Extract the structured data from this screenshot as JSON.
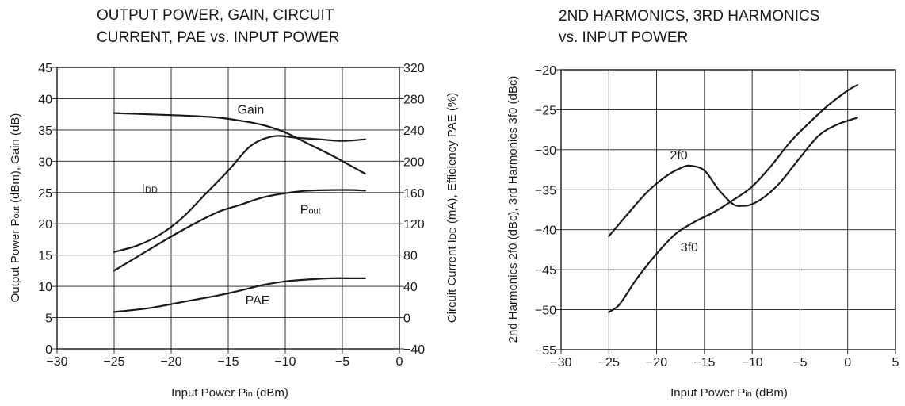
{
  "chart_data": [
    {
      "type": "line",
      "title_lines": [
        "OUTPUT POWER, GAIN, CIRCUIT",
        "CURRENT, PAE vs. INPUT POWER"
      ],
      "xlabel": {
        "main": "Input Power  P",
        "sub": "in",
        "unit": " (dBm)"
      },
      "ylabel_left": {
        "a": "Output Power  P",
        "a_sub": "out",
        "b": " (dBm), Gain (dB)"
      },
      "ylabel_right": {
        "a": "Circuit Current  I",
        "a_sub": "DD",
        "b": " (mA), Efficiency  PAE (%)"
      },
      "xlim": [
        -30,
        0
      ],
      "ylim_left": [
        0,
        45
      ],
      "ylim_right": [
        -40,
        320
      ],
      "x_ticks": [
        -30,
        -25,
        -20,
        -15,
        -10,
        -5,
        0
      ],
      "y_ticks_left": [
        0,
        5,
        10,
        15,
        20,
        25,
        30,
        35,
        40,
        45
      ],
      "y_ticks_right": [
        -40,
        0,
        40,
        80,
        120,
        160,
        200,
        240,
        280,
        320
      ],
      "x_tick_labels": [
        "−30",
        "−25",
        "−20",
        "−15",
        "−10",
        "−5",
        "0"
      ],
      "y_tick_labels_left": [
        "0",
        "5",
        "10",
        "15",
        "20",
        "25",
        "30",
        "35",
        "40",
        "45"
      ],
      "y_tick_labels_right": [
        "−40",
        "0",
        "40",
        "80",
        "120",
        "160",
        "200",
        "240",
        "280",
        "320"
      ],
      "grid": true,
      "series": [
        {
          "name": "Gain",
          "axis": "left",
          "x": [
            -25,
            -22,
            -19,
            -16,
            -14,
            -12,
            -10,
            -8,
            -6,
            -4,
            -3
          ],
          "y": [
            37.7,
            37.5,
            37.3,
            37.0,
            36.5,
            35.8,
            34.6,
            32.8,
            31.0,
            29.0,
            28.0
          ]
        },
        {
          "name": "IDD",
          "label_main": "I",
          "label_sub": "DD",
          "axis": "right",
          "x": [
            -25,
            -23,
            -21,
            -19,
            -17,
            -15,
            -13,
            -11,
            -9,
            -7,
            -5,
            -3
          ],
          "y": [
            84,
            92,
            106,
            128,
            158,
            188,
            220,
            232,
            230,
            228,
            226,
            228
          ]
        },
        {
          "name": "Pout",
          "label_main": "P",
          "label_sub": "out",
          "axis": "left",
          "x": [
            -25,
            -22,
            -19,
            -16,
            -14,
            -12,
            -10,
            -8,
            -6,
            -4,
            -3
          ],
          "y": [
            12.5,
            15.8,
            19.0,
            21.8,
            23.0,
            24.2,
            24.9,
            25.3,
            25.4,
            25.4,
            25.3
          ]
        },
        {
          "name": "PAE",
          "axis": "left",
          "x": [
            -25,
            -22,
            -19,
            -16,
            -14,
            -12,
            -10,
            -8,
            -6,
            -4,
            -3
          ],
          "y": [
            5.9,
            6.5,
            7.5,
            8.5,
            9.3,
            10.2,
            10.8,
            11.1,
            11.3,
            11.3,
            11.3
          ]
        }
      ],
      "annotations": [
        {
          "series": "Gain",
          "x": -14.2,
          "y": 37.6,
          "axis": "left"
        },
        {
          "series": "IDD",
          "x": -22.6,
          "y": 160,
          "axis": "right"
        },
        {
          "series": "Pout",
          "x": -8.7,
          "y": 21.6,
          "axis": "left"
        },
        {
          "series": "PAE",
          "x": -13.5,
          "y": 7.1,
          "axis": "left"
        }
      ]
    },
    {
      "type": "line",
      "title_lines": [
        "2ND HARMONICS, 3RD HARMONICS",
        "vs. INPUT POWER"
      ],
      "xlabel": {
        "main": "Input Power  P",
        "sub": "in",
        "unit": " (dBm)"
      },
      "ylabel_left": {
        "a": "2nd Harmonics  2f0 (dBc), 3rd Harmonics  3f0 (dBc)"
      },
      "xlim": [
        -30,
        5
      ],
      "ylim_left": [
        -55,
        -20
      ],
      "x_ticks": [
        -30,
        -25,
        -20,
        -15,
        -10,
        -5,
        0,
        5
      ],
      "y_ticks_left": [
        -55,
        -50,
        -45,
        -40,
        -35,
        -30,
        -25,
        -20
      ],
      "x_tick_labels": [
        "−30",
        "−25",
        "−20",
        "−15",
        "−10",
        "−5",
        "0",
        "5"
      ],
      "y_tick_labels_left": [
        "−55",
        "−50",
        "−45",
        "−40",
        "−35",
        "−30",
        "−25",
        "−20"
      ],
      "grid": true,
      "series": [
        {
          "name": "2f0",
          "x": [
            -25,
            -23,
            -21,
            -19,
            -17.5,
            -16.5,
            -15,
            -13.5,
            -12,
            -11,
            -10,
            -8.5,
            -7,
            -5,
            -3,
            -1,
            1
          ],
          "y": [
            -40.8,
            -38.0,
            -35.3,
            -33.3,
            -32.3,
            -32.0,
            -32.6,
            -35.0,
            -36.8,
            -37.0,
            -36.8,
            -35.7,
            -34.0,
            -31.0,
            -28.2,
            -26.8,
            -26.0
          ]
        },
        {
          "name": "3f0",
          "x": [
            -25,
            -24,
            -23,
            -22,
            -20,
            -18,
            -16,
            -14,
            -12,
            -10,
            -8,
            -6,
            -4,
            -2,
            0,
            1
          ],
          "y": [
            -50.3,
            -49.5,
            -47.8,
            -46.0,
            -43.0,
            -40.5,
            -39.0,
            -37.8,
            -36.3,
            -34.6,
            -32.0,
            -29.0,
            -26.6,
            -24.4,
            -22.6,
            -21.9
          ]
        }
      ],
      "annotations": [
        {
          "series": "2f0",
          "x": -18.6,
          "y": -31.2
        },
        {
          "series": "3f0",
          "x": -17.5,
          "y": -42.7
        }
      ]
    }
  ]
}
